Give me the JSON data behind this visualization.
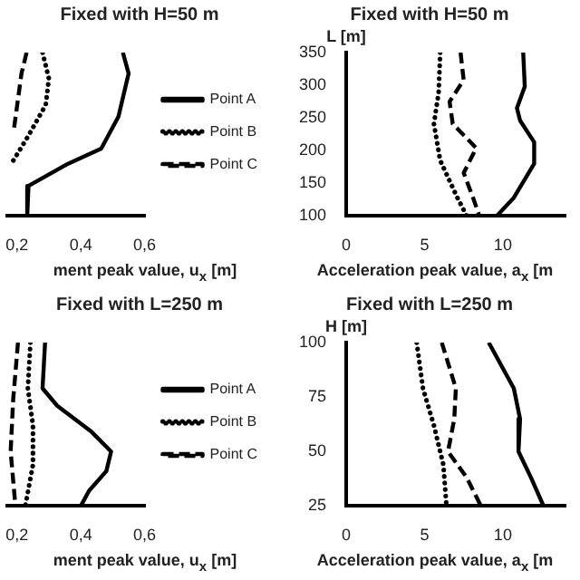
{
  "chart_data": [
    {
      "type": "line",
      "title": "Fixed with H=50 m",
      "xlabel": "ment peak value, u$_{x}$ [m]",
      "xlim": [
        0.17,
        0.6
      ],
      "xticks": [
        {
          "value": 0.2,
          "label": "0,2"
        },
        {
          "value": 0.4,
          "label": "0,4"
        },
        {
          "value": 0.6,
          "label": "0,6"
        }
      ],
      "ylim": [
        100,
        350
      ],
      "tick_labels": "x",
      "grid": false,
      "legend": "right",
      "series": [
        {
          "name": "Point A",
          "color": "#000000",
          "line_style": "solid",
          "x": [
            0.532,
            0.55,
            0.518,
            0.464,
            0.36,
            0.236,
            0.232,
            0.232
          ],
          "values": [
            350,
            318,
            252,
            203,
            180,
            146,
            126,
            100
          ]
        },
        {
          "name": "Point B",
          "color": "#000000",
          "line_style": "dotted",
          "x": [
            0.28,
            0.3,
            0.29,
            0.236,
            0.186
          ],
          "values": [
            350,
            310,
            270,
            223,
            183
          ]
        },
        {
          "name": "Point C",
          "color": "#000000",
          "line_style": "dashed",
          "x": [
            0.23,
            0.214,
            0.19
          ],
          "values": [
            350,
            318,
            232
          ]
        }
      ]
    },
    {
      "type": "line",
      "title": "Fixed with H=50 m",
      "xlabel": "Acceleration peak value, a$_{x}$ [m",
      "ylabel": "L [m]",
      "xlim": [
        0,
        14
      ],
      "xticks": [
        0,
        5,
        10
      ],
      "ylim": [
        100,
        350
      ],
      "yticks": [
        100,
        150,
        200,
        250,
        300,
        350
      ],
      "grid": false,
      "series": [
        {
          "color": "#000000",
          "line_style": "solid",
          "x": [
            11.3,
            11.4,
            10.9,
            11.1,
            12.0,
            12.0,
            10.7,
            9.6
          ],
          "values": [
            350,
            298,
            265,
            246,
            213,
            180,
            128,
            100
          ]
        },
        {
          "color": "#000000",
          "line_style": "dotted",
          "x": [
            6.0,
            5.9,
            5.6,
            6.0,
            7.1,
            7.7
          ],
          "values": [
            350,
            289,
            241,
            185,
            128,
            100
          ]
        },
        {
          "color": "#000000",
          "line_style": "dashed",
          "x": [
            7.3,
            7.5,
            6.6,
            6.8,
            8.3,
            7.5,
            8.1,
            8.5
          ],
          "values": [
            350,
            308,
            275,
            241,
            204,
            166,
            128,
            100
          ]
        }
      ]
    },
    {
      "type": "line",
      "title": "Fixed with L=250 m",
      "xlabel": "ment peak value, u$_{x}$ [m]",
      "xlim": [
        0.17,
        0.6
      ],
      "xticks": [
        {
          "value": 0.2,
          "label": "0,2"
        },
        {
          "value": 0.4,
          "label": "0,4"
        },
        {
          "value": 0.6,
          "label": "0,6"
        }
      ],
      "ylim": [
        25,
        100
      ],
      "tick_labels": "x",
      "grid": false,
      "legend": "right",
      "series": [
        {
          "name": "Point A",
          "color": "#000000",
          "line_style": "solid",
          "x": [
            0.288,
            0.28,
            0.326,
            0.434,
            0.495,
            0.48,
            0.426,
            0.4
          ],
          "values": [
            100,
            79,
            71,
            59,
            50,
            41,
            32,
            25
          ]
        },
        {
          "name": "Point B",
          "color": "#000000",
          "line_style": "dotted",
          "x": [
            0.242,
            0.234,
            0.25,
            0.25,
            0.226
          ],
          "values": [
            100,
            79,
            62,
            44,
            25
          ]
        },
        {
          "name": "Point C",
          "color": "#000000",
          "line_style": "dashed",
          "x": [
            0.203,
            0.188,
            0.18,
            0.195
          ],
          "values": [
            100,
            74,
            50,
            25
          ]
        }
      ]
    },
    {
      "type": "line",
      "title": "Fixed with L=250 m",
      "xlabel": "Acceleration peak value, a$_{x}$ [m",
      "ylabel": "H [m]",
      "xlim": [
        0,
        14
      ],
      "xticks": [
        0,
        5,
        10
      ],
      "ylim": [
        25,
        100
      ],
      "yticks": [
        25,
        50,
        75,
        100
      ],
      "grid": false,
      "series": [
        {
          "color": "#000000",
          "line_style": "solid",
          "x": [
            9.1,
            10.7,
            11.1,
            11.0,
            11.8,
            12.6
          ],
          "values": [
            100,
            79,
            65,
            50,
            38,
            25
          ]
        },
        {
          "color": "#000000",
          "line_style": "dotted",
          "x": [
            4.5,
            4.9,
            5.6,
            6.2,
            6.4
          ],
          "values": [
            100,
            79,
            62,
            44,
            25
          ]
        },
        {
          "color": "#000000",
          "line_style": "dashed",
          "x": [
            6.1,
            7.0,
            6.9,
            6.5,
            7.7,
            8.6
          ],
          "values": [
            100,
            79,
            65,
            50,
            38,
            25
          ]
        }
      ]
    }
  ]
}
